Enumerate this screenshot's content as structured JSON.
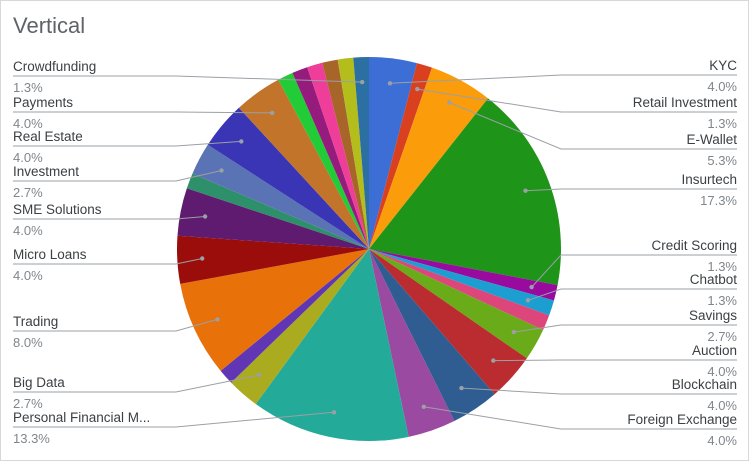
{
  "chart_data": {
    "type": "pie",
    "title": "Vertical",
    "slices": [
      {
        "label": "KYC",
        "value": 4.0,
        "display": "4.0%",
        "color": "#3d6ed6"
      },
      {
        "label": "Retail Investment",
        "value": 1.3,
        "display": "1.3%",
        "color": "#d9401f"
      },
      {
        "label": "E-Wallet",
        "value": 5.3,
        "display": "5.3%",
        "color": "#fb9d0b"
      },
      {
        "label": "Insurtech",
        "value": 17.3,
        "display": "17.3%",
        "color": "#1e9419"
      },
      {
        "label": "Credit Scoring",
        "value": 1.3,
        "display": "1.3%",
        "color": "#990b9e"
      },
      {
        "label": "Chatbot",
        "value": 1.3,
        "display": "1.3%",
        "color": "#1c9fd0"
      },
      {
        "label": "",
        "value": 1.3,
        "display": "",
        "color": "#dd467a"
      },
      {
        "label": "Savings",
        "value": 2.7,
        "display": "2.7%",
        "color": "#6aab1a"
      },
      {
        "label": "Auction",
        "value": 4.0,
        "display": "4.0%",
        "color": "#ba2c2f"
      },
      {
        "label": "Blockchain",
        "value": 4.0,
        "display": "4.0%",
        "color": "#2f5d92"
      },
      {
        "label": "Foreign Exchange",
        "value": 4.0,
        "display": "4.0%",
        "color": "#9a4aa0"
      },
      {
        "label": "Personal Financial M...",
        "value": 13.3,
        "display": "13.3%",
        "color": "#24aa99"
      },
      {
        "label": "Big Data",
        "value": 2.7,
        "display": "2.7%",
        "color": "#aaab1f"
      },
      {
        "label": "",
        "value": 1.3,
        "display": "",
        "color": "#6136b5"
      },
      {
        "label": "Trading",
        "value": 8.0,
        "display": "8.0%",
        "color": "#e8710a"
      },
      {
        "label": "Micro Loans",
        "value": 4.0,
        "display": "4.0%",
        "color": "#9b0d0b"
      },
      {
        "label": "SME Solutions",
        "value": 4.0,
        "display": "4.0%",
        "color": "#5f1b6f"
      },
      {
        "label": "",
        "value": 1.3,
        "display": "",
        "color": "#2e8f6b"
      },
      {
        "label": "Investment",
        "value": 2.7,
        "display": "2.7%",
        "color": "#5a73b5"
      },
      {
        "label": "Real Estate",
        "value": 4.0,
        "display": "4.0%",
        "color": "#3935b4"
      },
      {
        "label": "Payments",
        "value": 4.0,
        "display": "4.0%",
        "color": "#c2742b"
      },
      {
        "label": "",
        "value": 1.3,
        "display": "",
        "color": "#22cc37"
      },
      {
        "label": "",
        "value": 1.3,
        "display": "",
        "color": "#951b7c"
      },
      {
        "label": "",
        "value": 1.3,
        "display": "",
        "color": "#ef3d9a"
      },
      {
        "label": "",
        "value": 1.3,
        "display": "",
        "color": "#a7652a"
      },
      {
        "label": "",
        "value": 1.3,
        "display": "",
        "color": "#b3bd1c"
      },
      {
        "label": "Crowdfunding",
        "value": 1.3,
        "display": "1.3%",
        "color": "#2c6fa2"
      }
    ]
  }
}
